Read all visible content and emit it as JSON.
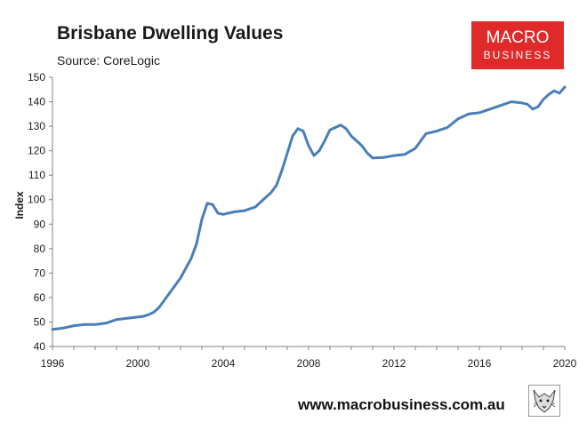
{
  "header": {
    "title": "Brisbane Dwelling Values",
    "source": "Source: CoreLogic"
  },
  "logo": {
    "line1": "MACRO",
    "line2": "BUSINESS",
    "color": "#e02a2a",
    "icon": "wolf-icon"
  },
  "footer": {
    "url": "www.macrobusiness.com.au"
  },
  "chart_data": {
    "type": "line",
    "title": "Brisbane Dwelling Values",
    "xlabel": "",
    "ylabel": "Index",
    "xlim": [
      1996,
      2020
    ],
    "ylim": [
      40,
      150
    ],
    "xticks": [
      "1996",
      "2000",
      "2004",
      "2008",
      "2012",
      "2016",
      "2020"
    ],
    "yticks": [
      "40",
      "50",
      "60",
      "70",
      "80",
      "90",
      "100",
      "110",
      "120",
      "130",
      "140",
      "150"
    ],
    "grid": false,
    "legend": "none",
    "line_color": "#4a7ebb",
    "series": [
      {
        "x": [
          1996.0,
          1996.5,
          1997.0,
          1997.5,
          1998.0,
          1998.5,
          1999.0,
          1999.5,
          2000.0,
          2000.25,
          2000.5,
          2000.75,
          2001.0,
          2001.5,
          2002.0,
          2002.5,
          2002.75,
          2003.0,
          2003.25,
          2003.5,
          2003.75,
          2004.0,
          2004.5,
          2005.0,
          2005.5,
          2006.0,
          2006.25,
          2006.5,
          2006.75,
          2007.0,
          2007.25,
          2007.5,
          2007.75,
          2008.0,
          2008.25,
          2008.5,
          2008.75,
          2009.0,
          2009.25,
          2009.5,
          2009.75,
          2010.0,
          2010.25,
          2010.5,
          2010.75,
          2011.0,
          2011.5,
          2012.0,
          2012.5,
          2013.0,
          2013.5,
          2014.0,
          2014.5,
          2015.0,
          2015.5,
          2016.0,
          2016.5,
          2017.0,
          2017.5,
          2018.0,
          2018.25,
          2018.5,
          2018.75,
          2019.0,
          2019.25,
          2019.5,
          2019.75,
          2020.0
        ],
        "values": [
          47,
          47.5,
          48.5,
          49,
          49,
          49.5,
          51,
          51.5,
          52,
          52.3,
          53,
          54,
          56,
          62,
          68,
          76,
          82,
          92,
          98.5,
          98,
          94.5,
          94,
          95,
          95.5,
          97,
          101,
          103,
          106,
          112,
          119,
          126,
          129,
          128,
          122,
          118,
          120,
          124,
          128.5,
          129.5,
          130.5,
          129,
          126,
          124,
          122,
          119,
          117,
          117.2,
          118,
          118.5,
          121,
          127,
          128,
          129.5,
          133,
          135,
          135.5,
          137,
          138.5,
          140,
          139.5,
          139,
          137,
          138,
          141,
          143,
          144.5,
          143.5,
          146
        ]
      }
    ]
  }
}
